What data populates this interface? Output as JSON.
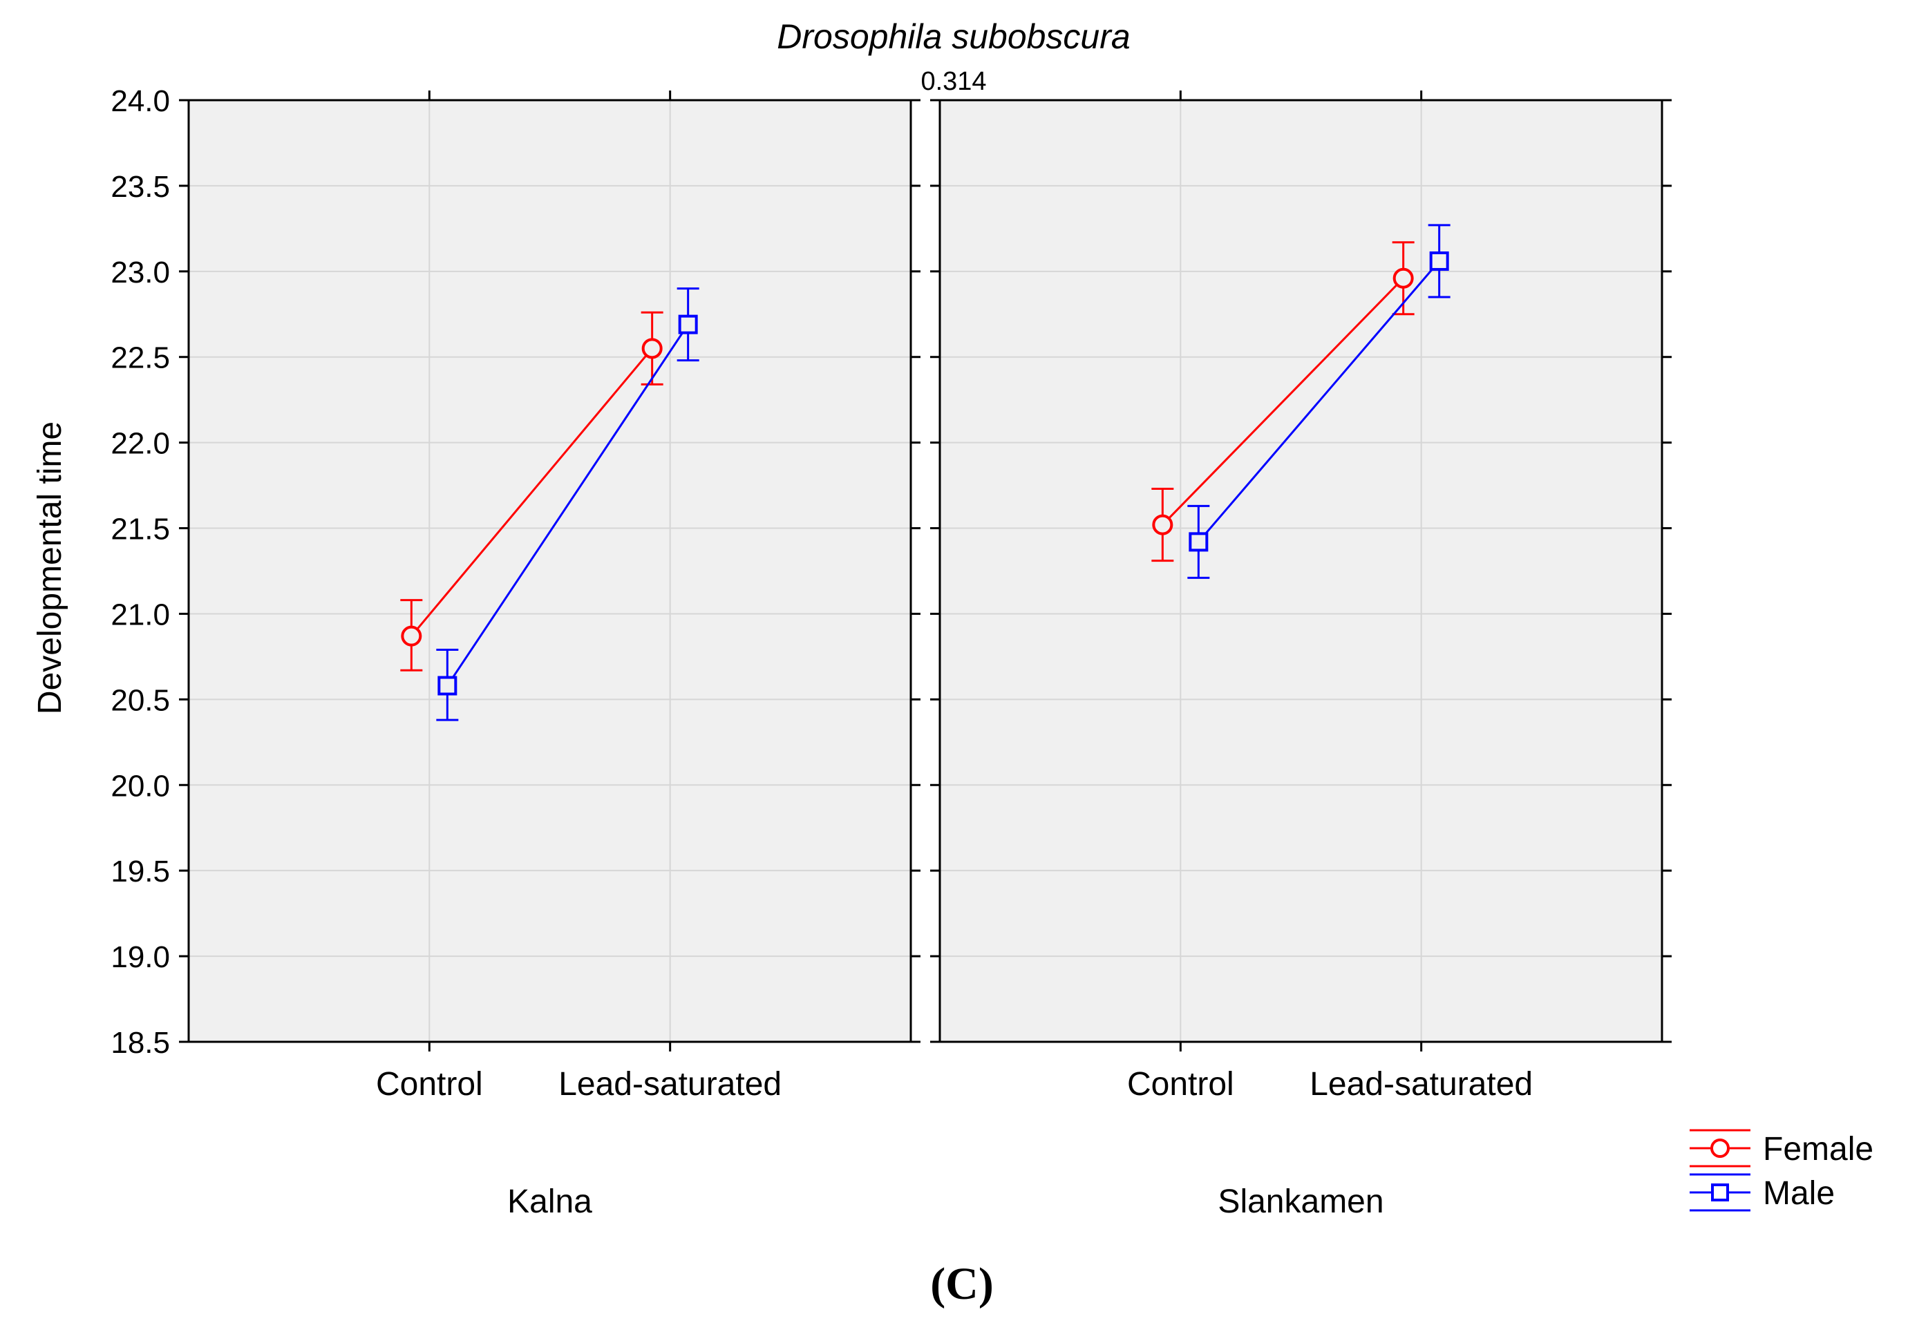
{
  "figure": {
    "panel_label": "(C)"
  },
  "chart_data": {
    "type": "line",
    "title": "Drosophila subobscura",
    "subtitle": "0.314",
    "ylabel": "Developmental time",
    "xlabel": "",
    "ylim": [
      18.5,
      24.0
    ],
    "yticks": [
      "24.0",
      "23.5",
      "23.0",
      "22.5",
      "22.0",
      "21.5",
      "21.0",
      "20.5",
      "20.0",
      "19.5",
      "19.0",
      "18.5"
    ],
    "categories": [
      "Control",
      "Lead-saturated"
    ],
    "grid": true,
    "legend_position": "bottom-right",
    "panels": [
      {
        "name": "Kalna",
        "series": [
          {
            "name": "Female",
            "marker": "circle",
            "color": "#ff0000",
            "values": [
              20.87,
              22.55
            ],
            "err_low": [
              20.67,
              22.34
            ],
            "err_high": [
              21.08,
              22.76
            ]
          },
          {
            "name": "Male",
            "marker": "square",
            "color": "#0000ff",
            "values": [
              20.58,
              22.69
            ],
            "err_low": [
              20.38,
              22.48
            ],
            "err_high": [
              20.79,
              22.9
            ]
          }
        ]
      },
      {
        "name": "Slankamen",
        "series": [
          {
            "name": "Female",
            "marker": "circle",
            "color": "#ff0000",
            "values": [
              21.52,
              22.96
            ],
            "err_low": [
              21.31,
              22.75
            ],
            "err_high": [
              21.73,
              23.17
            ]
          },
          {
            "name": "Male",
            "marker": "square",
            "color": "#0000ff",
            "values": [
              21.42,
              23.06
            ],
            "err_low": [
              21.21,
              22.85
            ],
            "err_high": [
              21.63,
              23.27
            ]
          }
        ]
      }
    ],
    "legend": [
      {
        "label": "Female",
        "color": "#ff0000",
        "marker": "circle"
      },
      {
        "label": "Male",
        "color": "#0000ff",
        "marker": "square"
      }
    ]
  }
}
